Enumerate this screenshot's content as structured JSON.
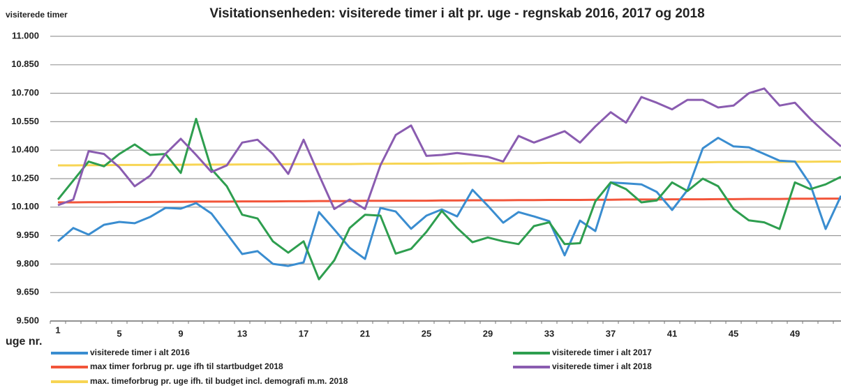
{
  "chart_data": {
    "type": "line",
    "title": "Visitationsenheden: visiterede timer i alt pr. uge -  regnskab 2016, 2017 og 2018",
    "y_label": "visiterede timer",
    "x_label": "uge nr.",
    "categories": [
      "1",
      null,
      null,
      null,
      "5",
      null,
      null,
      null,
      "9",
      null,
      null,
      null,
      "13",
      null,
      null,
      null,
      "17",
      null,
      null,
      null,
      "21",
      null,
      null,
      null,
      "25",
      null,
      null,
      null,
      "29",
      null,
      null,
      null,
      "33",
      null,
      null,
      null,
      "37",
      null,
      null,
      null,
      "41",
      null,
      null,
      null,
      "45",
      null,
      null,
      null,
      "49",
      null,
      null,
      null
    ],
    "ylim": [
      9500,
      11000
    ],
    "yticks": [
      {
        "value": 9500,
        "label": "9.500"
      },
      {
        "value": 9650,
        "label": "9.650"
      },
      {
        "value": 9800,
        "label": "9.800"
      },
      {
        "value": 9950,
        "label": "9.950"
      },
      {
        "value": 10100,
        "label": "10.100"
      },
      {
        "value": 10250,
        "label": "10.250"
      },
      {
        "value": 10400,
        "label": "10.400"
      },
      {
        "value": 10550,
        "label": "10.550"
      },
      {
        "value": 10700,
        "label": "10.700"
      },
      {
        "value": 10850,
        "label": "10.850"
      },
      {
        "value": 11000,
        "label": "11.000"
      }
    ],
    "grid": true,
    "series": [
      {
        "name": "visiterede timer i alt 2016",
        "color": "#3a8dd0",
        "values": [
          9920,
          9990,
          9955,
          10007,
          10022,
          10015,
          10048,
          10096,
          10092,
          10121,
          10066,
          9960,
          9853,
          9868,
          9801,
          9790,
          9809,
          10074,
          9982,
          9886,
          9827,
          10096,
          10077,
          9986,
          10055,
          10088,
          10051,
          10191,
          10107,
          10018,
          10074,
          10051,
          10026,
          9846,
          10029,
          9974,
          10230,
          10225,
          10220,
          10180,
          10085,
          10190,
          10410,
          10465,
          10420,
          10415,
          10380,
          10345,
          10340,
          10220,
          9985,
          10160
        ]
      },
      {
        "name": "visiterede timer i alt 2017",
        "color": "#2e9e4f",
        "values": [
          10140,
          10240,
          10340,
          10315,
          10380,
          10430,
          10375,
          10380,
          10280,
          10565,
          10300,
          10210,
          10060,
          10040,
          9920,
          9860,
          9920,
          9720,
          9820,
          9990,
          10060,
          10055,
          9855,
          9880,
          9970,
          10080,
          9990,
          9915,
          9940,
          9920,
          9905,
          10000,
          10020,
          9905,
          9910,
          10130,
          10230,
          10195,
          10125,
          10135,
          10230,
          10185,
          10250,
          10210,
          10090,
          10030,
          10020,
          9985,
          10230,
          10195,
          10220,
          10260
        ]
      },
      {
        "name": "visiterede timer i alt 2018",
        "color": "#8a5cb0",
        "values": [
          10110,
          10140,
          10395,
          10380,
          10310,
          10210,
          10265,
          10380,
          10460,
          10375,
          10285,
          10320,
          10440,
          10455,
          10380,
          10275,
          10455,
          10270,
          10090,
          10140,
          10090,
          10320,
          10480,
          10530,
          10370,
          10375,
          10385,
          10375,
          10365,
          10340,
          10475,
          10440,
          10470,
          10500,
          10440,
          10525,
          10600,
          10545,
          10680,
          10650,
          10615,
          10665,
          10665,
          10625,
          10635,
          10700,
          10725,
          10635,
          10650,
          10565,
          10490,
          10420
        ]
      },
      {
        "name": "max timer forbrug pr. uge ifh til startbudget 2018",
        "color": "#f2553a",
        "values": [
          10125,
          10125,
          10126,
          10126,
          10127,
          10127,
          10127,
          10128,
          10128,
          10129,
          10129,
          10129,
          10130,
          10130,
          10130,
          10131,
          10131,
          10132,
          10132,
          10132,
          10133,
          10133,
          10134,
          10134,
          10134,
          10135,
          10135,
          10136,
          10136,
          10136,
          10137,
          10137,
          10138,
          10138,
          10138,
          10139,
          10139,
          10140,
          10140,
          10140,
          10141,
          10141,
          10141,
          10142,
          10142,
          10143,
          10143,
          10143,
          10144,
          10144,
          10145,
          10145
        ]
      },
      {
        "name": "max. timeforbrug pr. uge ifh. til budget incl. demografi m.m. 2018",
        "color": "#f7d553",
        "values": [
          10320,
          10320,
          10321,
          10321,
          10322,
          10322,
          10322,
          10323,
          10323,
          10324,
          10324,
          10324,
          10325,
          10325,
          10325,
          10326,
          10326,
          10327,
          10327,
          10327,
          10328,
          10328,
          10329,
          10329,
          10329,
          10330,
          10330,
          10331,
          10331,
          10331,
          10332,
          10332,
          10333,
          10333,
          10333,
          10334,
          10334,
          10335,
          10335,
          10335,
          10336,
          10336,
          10336,
          10337,
          10337,
          10338,
          10338,
          10338,
          10339,
          10339,
          10340,
          10340
        ]
      }
    ]
  }
}
